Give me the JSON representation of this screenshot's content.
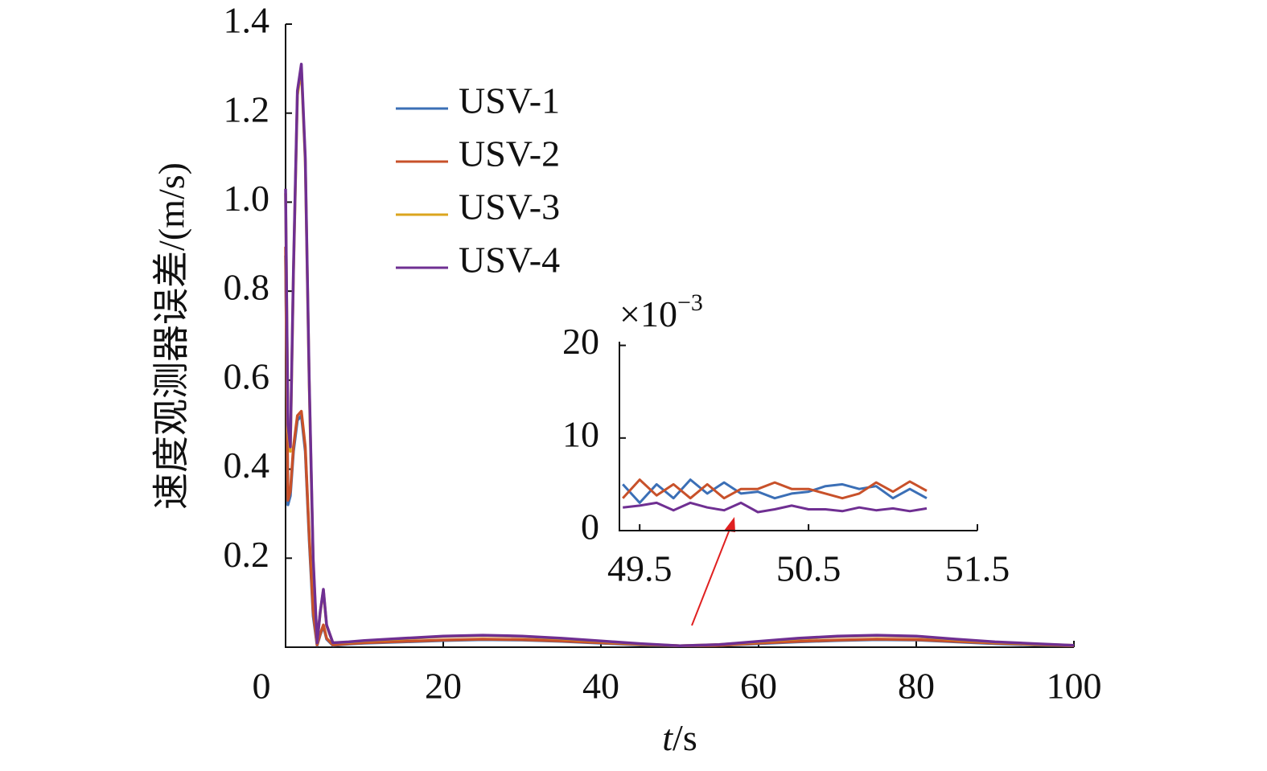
{
  "chart_data": [
    {
      "type": "line",
      "ylabel": "速度观测器误差/(m/s)",
      "xlabel": {
        "var": "t",
        "unit": "/s"
      },
      "x": [
        0,
        0.3,
        0.6,
        1,
        1.5,
        2,
        2.5,
        3,
        3.5,
        4,
        4.4,
        4.8,
        5.2,
        6,
        8,
        10,
        15,
        20,
        25,
        30,
        35,
        40,
        45,
        50,
        55,
        60,
        65,
        70,
        75,
        80,
        85,
        90,
        95,
        100
      ],
      "xlim": [
        0,
        100
      ],
      "xticks": [
        0,
        20,
        40,
        60,
        80,
        100
      ],
      "ylim": [
        0,
        1.4
      ],
      "yticks": [
        0.2,
        0.4,
        0.6,
        0.8,
        {
          "value": 1,
          "label": "1.0"
        },
        1.2,
        1.4
      ],
      "series": [
        {
          "name": "USV-1",
          "color": "#3b6fb6",
          "values": [
            0.88,
            0.32,
            0.34,
            0.44,
            0.51,
            0.52,
            0.44,
            0.24,
            0.07,
            0.004,
            0.028,
            0.047,
            0.018,
            0.004,
            0.007,
            0.009,
            0.012,
            0.015,
            0.017,
            0.016,
            0.013,
            0.009,
            0.005,
            0.003,
            0.004,
            0.008,
            0.012,
            0.015,
            0.017,
            0.016,
            0.012,
            0.008,
            0.005,
            0.003
          ]
        },
        {
          "name": "USV-2",
          "color": "#c8512a",
          "values": [
            0.9,
            0.33,
            0.35,
            0.45,
            0.52,
            0.53,
            0.45,
            0.25,
            0.08,
            0.005,
            0.03,
            0.05,
            0.02,
            0.005,
            0.008,
            0.01,
            0.013,
            0.016,
            0.018,
            0.017,
            0.014,
            0.01,
            0.006,
            0.003,
            0.004,
            0.009,
            0.013,
            0.016,
            0.018,
            0.017,
            0.013,
            0.009,
            0.006,
            0.003
          ]
        },
        {
          "name": "USV-3",
          "color": "#dba51e",
          "values": [
            1.02,
            0.49,
            0.44,
            0.84,
            1.24,
            1.3,
            1.09,
            0.59,
            0.19,
            0.01,
            0.078,
            0.128,
            0.048,
            0.01,
            0.011,
            0.014,
            0.019,
            0.024,
            0.026,
            0.024,
            0.019,
            0.013,
            0.007,
            0.003,
            0.006,
            0.012,
            0.019,
            0.024,
            0.026,
            0.024,
            0.017,
            0.011,
            0.007,
            0.004
          ]
        },
        {
          "name": "USV-4",
          "color": "#6f2f92",
          "values": [
            1.03,
            0.5,
            0.45,
            0.85,
            1.25,
            1.31,
            1.1,
            0.6,
            0.2,
            0.01,
            0.08,
            0.13,
            0.05,
            0.01,
            0.012,
            0.015,
            0.02,
            0.025,
            0.027,
            0.025,
            0.02,
            0.014,
            0.008,
            0.003,
            0.006,
            0.013,
            0.02,
            0.025,
            0.027,
            0.025,
            0.018,
            0.012,
            0.008,
            0.004
          ]
        }
      ]
    },
    {
      "type": "line",
      "multiplier": {
        "base": "×10",
        "exp": "−3"
      },
      "x": [
        49.4,
        49.5,
        49.6,
        49.7,
        49.8,
        49.9,
        50.0,
        50.1,
        50.2,
        50.3,
        50.4,
        50.5,
        50.6,
        50.7,
        50.8,
        50.9,
        51.0,
        51.1,
        51.2
      ],
      "xlim": [
        49.38,
        51.5
      ],
      "xticks": [
        49.5,
        50.5,
        51.5
      ],
      "ylim": [
        0,
        20.4
      ],
      "yticks": [
        0,
        10,
        20
      ],
      "series": [
        {
          "color": "#3b6fb6",
          "values": [
            5,
            3,
            5,
            3.5,
            5.5,
            4,
            5.2,
            4,
            4.2,
            3.5,
            4,
            4.2,
            4.8,
            5,
            4.5,
            4.8,
            3.5,
            4.5,
            3.5
          ]
        },
        {
          "color": "#c8512a",
          "values": [
            3.5,
            5.5,
            3.8,
            5,
            3.5,
            5,
            3.5,
            4.5,
            4.5,
            5.2,
            4.5,
            4.5,
            4,
            3.5,
            4,
            5.2,
            4.2,
            5.3,
            4.3
          ]
        },
        {
          "color": "#6f2f92",
          "values": [
            2.5,
            2.7,
            3,
            2.2,
            3,
            2.5,
            2.2,
            3,
            2,
            2.3,
            2.7,
            2.3,
            2.3,
            2.1,
            2.5,
            2.2,
            2.4,
            2.1,
            2.4
          ]
        }
      ]
    }
  ]
}
